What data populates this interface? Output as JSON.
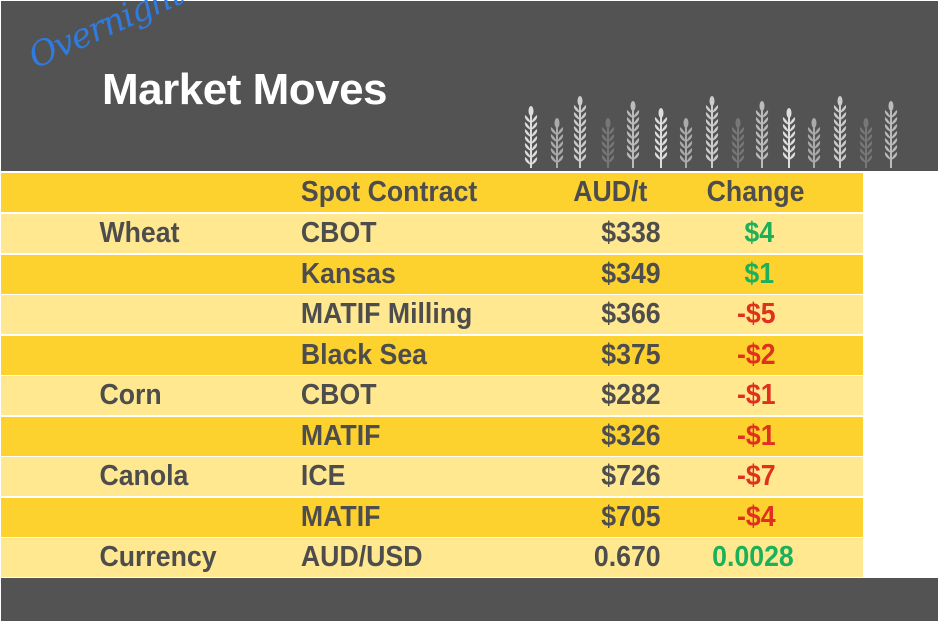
{
  "header": {
    "script_text": "Overnight",
    "title": "Market Moves"
  },
  "table": {
    "headers": [
      "",
      "Spot Contract",
      "AUD/t",
      "Change"
    ],
    "rows": [
      {
        "commodity": "Wheat",
        "contract": "CBOT",
        "price": "$338",
        "change": "$4",
        "direction": "up"
      },
      {
        "commodity": "",
        "contract": "Kansas",
        "price": "$349",
        "change": "$1",
        "direction": "up"
      },
      {
        "commodity": "",
        "contract": "MATIF Milling",
        "price": "$366",
        "change": "-$5",
        "direction": "down"
      },
      {
        "commodity": "",
        "contract": "Black Sea",
        "price": "$375",
        "change": "-$2",
        "direction": "down"
      },
      {
        "commodity": "Corn",
        "contract": "CBOT",
        "price": "$282",
        "change": "-$1",
        "direction": "down"
      },
      {
        "commodity": "",
        "contract": "MATIF",
        "price": "$326",
        "change": "-$1",
        "direction": "down"
      },
      {
        "commodity": "Canola",
        "contract": "ICE",
        "price": "$726",
        "change": "-$7",
        "direction": "down"
      },
      {
        "commodity": "",
        "contract": "MATIF",
        "price": "$705",
        "change": "-$4",
        "direction": "down"
      },
      {
        "commodity": "Currency",
        "contract": "AUD/USD",
        "price": "0.670",
        "change": "0.0028",
        "direction": "up"
      }
    ]
  },
  "colors": {
    "background": "#535353",
    "row_dark": "#fdd22f",
    "row_light": "#ffe890",
    "text": "#4d4d4d",
    "positive": "#1db05a",
    "negative": "#e0301e",
    "script": "#2f7be0"
  },
  "icons": {
    "decoration": "wheat-stalks-icon"
  }
}
